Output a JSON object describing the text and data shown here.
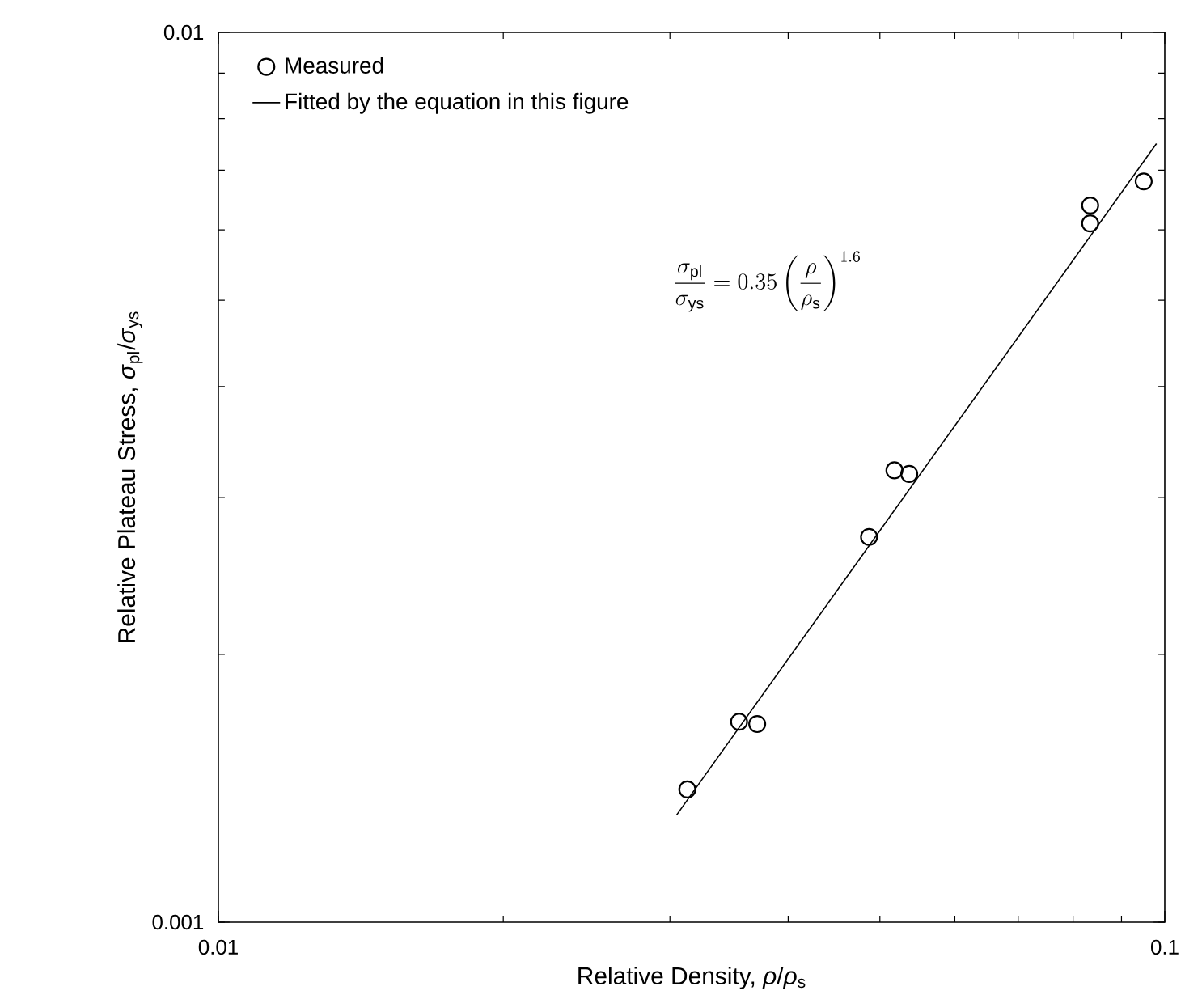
{
  "chart_data": {
    "type": "scatter",
    "log": "xy",
    "xlabel": "Relative Density, *ρ*/*ρ*$_{s}$",
    "ylabel": "Relative Plateau Stress, *σ*$_{pl}$/*σ*$_{ys}$",
    "xlim": [
      0.01,
      0.1
    ],
    "ylim": [
      0.001,
      0.01
    ],
    "xticks": [
      0.01,
      0.1
    ],
    "yticks": [
      0.001,
      0.01
    ],
    "grid": false,
    "legend": "top left",
    "series": [
      {
        "name": "Measured",
        "marker": "circle",
        "color": "#000000",
        "x": [
          0.0313,
          0.0355,
          0.0371,
          0.0487,
          0.0518,
          0.0537,
          0.0834,
          0.0834,
          0.095
        ],
        "values": [
          0.00141,
          0.00168,
          0.00167,
          0.00271,
          0.00322,
          0.00319,
          0.00639,
          0.0061,
          0.0068
        ]
      },
      {
        "name": "Fitted by the equation in this figure",
        "type": "line",
        "color": "#000000",
        "x": [
          0.0305,
          0.098
        ],
        "values": [
          0.00132,
          0.0075
        ]
      }
    ],
    "annotations": [
      "\\frac{\\sigma_{\\mathrm{pl}}}{\\sigma_{\\mathrm{ys}}} = 0.35\\left(\\frac{\\rho}{\\rho_{\\mathrm{s}}}\\right)^{1.6}"
    ]
  }
}
